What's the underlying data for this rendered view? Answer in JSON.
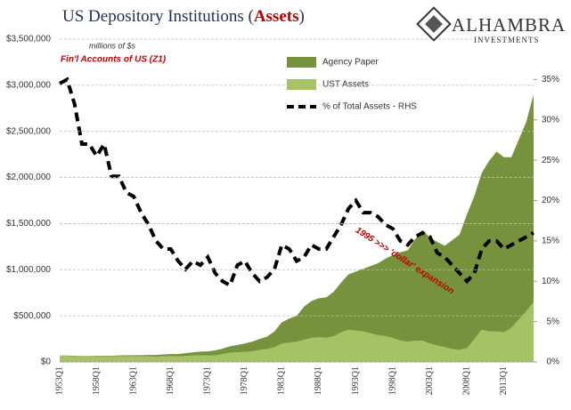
{
  "chart_data": {
    "type": "stacked-area-line",
    "title": [
      "US Depository Institutions (",
      "Assets",
      ")"
    ],
    "logo": {
      "name": "ALHAMBRA",
      "tagline": "INVESTMENTS"
    },
    "annotations": [
      "millions of $s",
      "Fin'l Accounts of US (Z1)",
      "1995 >>> 'dollar' expansion"
    ],
    "categories": [
      "1953Q1",
      null,
      null,
      null,
      null,
      "1958Q1",
      null,
      null,
      null,
      null,
      "1963Q1",
      null,
      null,
      null,
      null,
      "1968Q1",
      null,
      null,
      null,
      null,
      "1973Q1",
      null,
      null,
      null,
      null,
      "1978Q1",
      null,
      null,
      null,
      null,
      "1983Q1",
      null,
      null,
      null,
      null,
      "1988Q1",
      null,
      null,
      null,
      null,
      "1993Q1",
      null,
      null,
      null,
      null,
      "1998Q1",
      null,
      null,
      null,
      null,
      "2003Q1",
      null,
      null,
      null,
      null,
      "2008Q1",
      null,
      null,
      null,
      null,
      "2013Q1",
      null,
      null,
      null,
      null
    ],
    "series": [
      {
        "name": "Agency Paper",
        "color": "#76923c",
        "values": [
          5000,
          5000,
          5000,
          5000,
          5000,
          6000,
          7000,
          8000,
          9000,
          10000,
          12000,
          14000,
          16000,
          18000,
          20000,
          22000,
          25000,
          30000,
          35000,
          40000,
          45000,
          55000,
          60000,
          70000,
          80000,
          90000,
          105000,
          120000,
          135000,
          170000,
          230000,
          260000,
          280000,
          360000,
          400000,
          420000,
          440000,
          480000,
          540000,
          600000,
          640000,
          680000,
          730000,
          780000,
          840000,
          900000,
          960000,
          990000,
          1100000,
          1200000,
          1150000,
          1120000,
          1100000,
          1180000,
          1250000,
          1450000,
          1550000,
          1700000,
          1850000,
          1950000,
          1900000,
          1850000,
          1950000,
          2050000,
          2250000
        ]
      },
      {
        "name": "UST Assets",
        "color": "#a5c264",
        "values": [
          65000,
          65000,
          62000,
          60000,
          60000,
          62000,
          60000,
          60000,
          62000,
          62000,
          62000,
          60000,
          60000,
          58000,
          62000,
          64000,
          60000,
          65000,
          70000,
          72000,
          70000,
          70000,
          85000,
          100000,
          105000,
          110000,
          115000,
          130000,
          140000,
          160000,
          200000,
          210000,
          220000,
          240000,
          260000,
          270000,
          260000,
          280000,
          320000,
          350000,
          340000,
          330000,
          310000,
          290000,
          280000,
          260000,
          230000,
          220000,
          230000,
          230000,
          200000,
          180000,
          160000,
          140000,
          130000,
          150000,
          250000,
          350000,
          330000,
          330000,
          320000,
          370000,
          460000,
          550000,
          650000
        ]
      },
      {
        "name": "% of Total Assets - RHS",
        "color": "#000000",
        "axis": "y2",
        "values": [
          34.5,
          35,
          32,
          27,
          27,
          25.5,
          27,
          23,
          23,
          21,
          20.5,
          18.5,
          17,
          15,
          14,
          14,
          12.5,
          11.5,
          12.5,
          12,
          13,
          11,
          10,
          9.5,
          12,
          12.5,
          11,
          10,
          10.5,
          11.5,
          14.5,
          14,
          12.5,
          13,
          14.5,
          14,
          14,
          15.5,
          17,
          19,
          20,
          18.5,
          18.5,
          18,
          17,
          16.5,
          15,
          14.5,
          15.5,
          16,
          15.5,
          13.5,
          13,
          12,
          11,
          10,
          11,
          14,
          15,
          15,
          14,
          14.5,
          15,
          15.5,
          16
        ]
      }
    ],
    "ylim": [
      0,
      3500000
    ],
    "yticks": [
      {
        "value": 0,
        "label": "$0"
      },
      {
        "value": 500000,
        "label": "$500,000"
      },
      {
        "value": 1000000,
        "label": "$1,000,000"
      },
      {
        "value": 1500000,
        "label": "$1,500,000"
      },
      {
        "value": 2000000,
        "label": "$2,000,000"
      },
      {
        "value": 2500000,
        "label": "$2,500,000"
      },
      {
        "value": 3000000,
        "label": "$3,000,000"
      },
      {
        "value": 3500000,
        "label": "$3,500,000"
      }
    ],
    "y2lim": [
      0,
      40
    ],
    "y2ticks": [
      {
        "value": 0,
        "label": "0%"
      },
      {
        "value": 5,
        "label": "5%"
      },
      {
        "value": 10,
        "label": "10%"
      },
      {
        "value": 15,
        "label": "15%"
      },
      {
        "value": 20,
        "label": "20%"
      },
      {
        "value": 25,
        "label": "25%"
      },
      {
        "value": 30,
        "label": "30%"
      },
      {
        "value": 35,
        "label": "35%"
      }
    ],
    "grid": true,
    "stacked": true
  }
}
